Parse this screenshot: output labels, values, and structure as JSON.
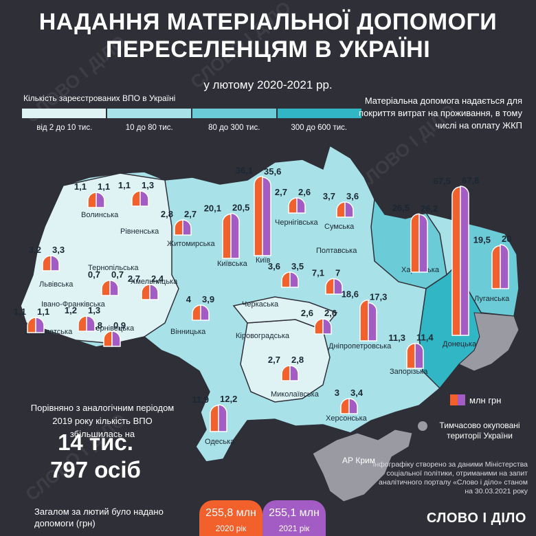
{
  "title_line1": "НАДАННЯ МАТЕРІАЛЬНОЇ ДОПОМОГИ",
  "title_line2": "ПЕРЕСЕЛЕНЦЯМ В УКРАЇНІ",
  "subtitle": "у лютому 2020-2021 рр.",
  "legend": {
    "title": "Кількість зареєстрованих ВПО в Україні",
    "ranges": [
      "від 2 до 10 тис.",
      "10 до 80 тис.",
      "80 до 300 тис.",
      "300 до 600 тис."
    ],
    "colors": [
      "#dff3f5",
      "#a8e1e7",
      "#6bcbd6",
      "#31b6c6"
    ]
  },
  "note": "Матеріальна допомога надається для покриття витрат на проживання, в тому числі на оплату ЖКП",
  "series_colors": {
    "2020": "#f2602b",
    "2021": "#a35cc3"
  },
  "regions": [
    {
      "name": "Волинська",
      "v2020": "1,1",
      "v2021": "1,1"
    },
    {
      "name": "Рівненська",
      "v2020": "1,1",
      "v2021": "1,3"
    },
    {
      "name": "Житомирська",
      "v2020": "2,8",
      "v2021": "2,7"
    },
    {
      "name": "Київська",
      "v2020": "20,1",
      "v2021": "20,5"
    },
    {
      "name": "Київ",
      "v2020": "36,1",
      "v2021": "35,6"
    },
    {
      "name": "Чернігівська",
      "v2020": "2,7",
      "v2021": "2,6"
    },
    {
      "name": "Сумська",
      "v2020": "3,7",
      "v2021": "3,6"
    },
    {
      "name": "Харківська",
      "v2020": "26,5",
      "v2021": "26,2"
    },
    {
      "name": "Донецька",
      "v2020": "67,5",
      "v2021": "67,8"
    },
    {
      "name": "Луганська",
      "v2020": "19,5",
      "v2021": "20"
    },
    {
      "name": "Львівська",
      "v2020": "3,2",
      "v2021": "3,3"
    },
    {
      "name": "Тернопільська",
      "v2020": "0,7",
      "v2021": "0,7"
    },
    {
      "name": "Хмельницька",
      "v2020": "2,7",
      "v2021": "2,4"
    },
    {
      "name": "Вінницька",
      "v2020": "4",
      "v2021": "3,9"
    },
    {
      "name": "Івано-Франківська",
      "v2020": "",
      "v2021": ""
    },
    {
      "name": "Закарпатська",
      "v2020": "1,1",
      "v2021": "1,1"
    },
    {
      "name": "Чернівецька",
      "v2020": "0,8",
      "v2021": "0,9"
    },
    {
      "name": "Черкаська",
      "v2020": "3,6",
      "v2021": "3,5"
    },
    {
      "name": "Полтавська",
      "v2020": "7,1",
      "v2021": "7"
    },
    {
      "name": "Дніпропетровська",
      "v2020": "18,6",
      "v2021": "17,3"
    },
    {
      "name": "Кіровоградська",
      "v2020": "2,6",
      "v2021": "2,6"
    },
    {
      "name": "Запорізька",
      "v2020": "11,3",
      "v2021": "11,4"
    },
    {
      "name": "Миколаївська",
      "v2020": "2,7",
      "v2021": "2,8"
    },
    {
      "name": "Херсонська",
      "v2020": "3",
      "v2021": "3,4"
    },
    {
      "name": "Одеська",
      "v2020": "11,9",
      "v2021": "12,2"
    },
    {
      "name": "Чернівецька-extra",
      "v2020": "1,2",
      "v2021": "1,3"
    }
  ],
  "crimea_label": "АР Крим",
  "mln_legend": "млн грн",
  "occupied_legend": "Тимчасово окуповані території України",
  "compare_text": "Порівняно з аналогічним періодом 2019 року кількість ВПО збільшилась на",
  "big_line1": "14 тис.",
  "big_line2": "797 осіб",
  "total_label": "Загалом за лютий було надано допомоги (грн)",
  "total_2020_value": "255,8 млн",
  "total_2020_year": "2020 рік",
  "total_2021_value": "255,1 млн",
  "total_2021_year": "2021 рік",
  "credit": "Інфографіку створено за даними Міністерства соціальної політики, отриманими на запит аналітичного порталу «Слово і діло» станом на 30.03.2021 року",
  "brand": "СЛОВО І ДІЛО",
  "watermark": "СЛОВО І ДІЛО"
}
